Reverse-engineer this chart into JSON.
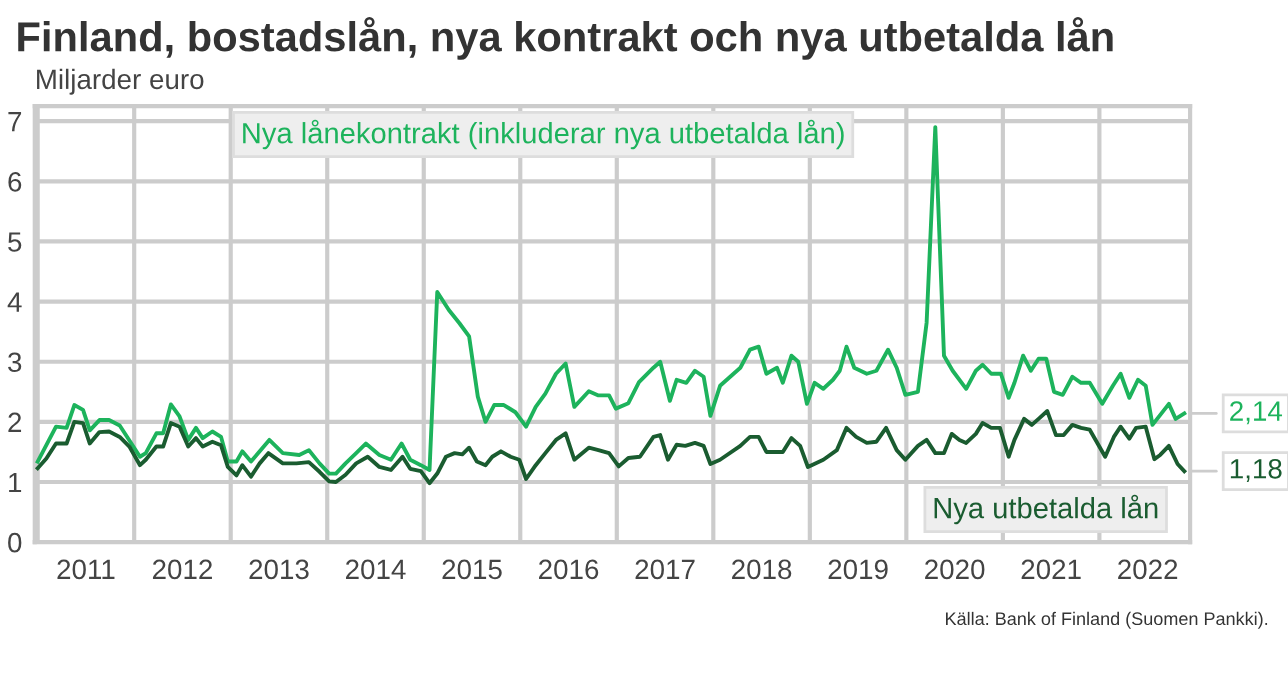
{
  "chart_data": {
    "type": "line",
    "title": "Finland, bostadslån, nya kontrakt och nya utbetalda lån",
    "ylabel": "Miljarder euro",
    "xlim": [
      2010.97,
      2022.94
    ],
    "ylim": [
      0,
      7.25
    ],
    "yticks": [
      0,
      1,
      2,
      3,
      4,
      5,
      6,
      7
    ],
    "xticks": [
      {
        "value": 2011,
        "label": null
      },
      {
        "value": 2011.5,
        "label": "2011"
      },
      {
        "value": 2012,
        "label": null
      },
      {
        "value": 2012.5,
        "label": "2012"
      },
      {
        "value": 2013,
        "label": null
      },
      {
        "value": 2013.5,
        "label": "2013"
      },
      {
        "value": 2014,
        "label": null
      },
      {
        "value": 2014.5,
        "label": "2014"
      },
      {
        "value": 2015,
        "label": null
      },
      {
        "value": 2015.5,
        "label": "2015"
      },
      {
        "value": 2016,
        "label": null
      },
      {
        "value": 2016.5,
        "label": "2016"
      },
      {
        "value": 2017,
        "label": null
      },
      {
        "value": 2017.5,
        "label": "2017"
      },
      {
        "value": 2018,
        "label": null
      },
      {
        "value": 2018.5,
        "label": "2018"
      },
      {
        "value": 2019,
        "label": null
      },
      {
        "value": 2019.5,
        "label": "2019"
      },
      {
        "value": 2020,
        "label": null
      },
      {
        "value": 2020.5,
        "label": "2020"
      },
      {
        "value": 2021,
        "label": null
      },
      {
        "value": 2021.5,
        "label": "2021"
      },
      {
        "value": 2022,
        "label": null
      },
      {
        "value": 2022.5,
        "label": "2022"
      }
    ],
    "grid": true,
    "legend": false,
    "marker": "none",
    "line_style": "solid",
    "series": [
      {
        "name": "Nya lånekontrakt (inkluderar nya utbetalda lån)",
        "color": "#1db35c",
        "x": [
          2011.0,
          2011.19,
          2011.3,
          2011.38,
          2011.47,
          2011.54,
          2011.64,
          2011.74,
          2011.85,
          2012.06,
          2012.12,
          2012.23,
          2012.3,
          2012.38,
          2012.47,
          2012.56,
          2012.64,
          2012.71,
          2012.81,
          2012.9,
          2012.97,
          2013.06,
          2013.12,
          2013.21,
          2013.4,
          2013.54,
          2013.71,
          2013.81,
          2013.92,
          2014.02,
          2014.09,
          2014.19,
          2014.3,
          2014.4,
          2014.54,
          2014.66,
          2014.77,
          2014.86,
          2014.97,
          2015.06,
          2015.14,
          2015.26,
          2015.37,
          2015.47,
          2015.56,
          2015.64,
          2015.73,
          2015.83,
          2015.95,
          2016.06,
          2016.16,
          2016.26,
          2016.37,
          2016.47,
          2016.56,
          2016.71,
          2016.81,
          2016.92,
          2016.99,
          2017.12,
          2017.23,
          2017.38,
          2017.45,
          2017.55,
          2017.62,
          2017.72,
          2017.81,
          2017.9,
          2017.97,
          2018.07,
          2018.28,
          2018.38,
          2018.47,
          2018.55,
          2018.66,
          2018.72,
          2018.81,
          2018.88,
          2018.97,
          2019.05,
          2019.14,
          2019.24,
          2019.31,
          2019.38,
          2019.46,
          2019.59,
          2019.69,
          2019.81,
          2019.9,
          2019.99,
          2020.12,
          2020.21,
          2020.3,
          2020.39,
          2020.48,
          2020.62,
          2020.72,
          2020.79,
          2020.88,
          2020.98,
          2021.06,
          2021.12,
          2021.21,
          2021.29,
          2021.37,
          2021.45,
          2021.53,
          2021.62,
          2021.72,
          2021.81,
          2021.9,
          2022.03,
          2022.14,
          2022.22,
          2022.31,
          2022.4,
          2022.48,
          2022.55,
          2022.72,
          2022.79,
          2022.88
        ],
        "values": [
          1.34,
          1.92,
          1.9,
          2.28,
          2.2,
          1.86,
          2.03,
          2.03,
          1.94,
          1.42,
          1.48,
          1.81,
          1.81,
          2.29,
          2.09,
          1.7,
          1.9,
          1.73,
          1.84,
          1.75,
          1.34,
          1.34,
          1.51,
          1.34,
          1.7,
          1.48,
          1.45,
          1.53,
          1.31,
          1.14,
          1.14,
          1.31,
          1.48,
          1.64,
          1.45,
          1.37,
          1.64,
          1.37,
          1.28,
          1.2,
          4.16,
          3.86,
          3.64,
          3.42,
          2.42,
          2.0,
          2.28,
          2.28,
          2.16,
          1.92,
          2.25,
          2.47,
          2.8,
          2.97,
          2.25,
          2.51,
          2.44,
          2.44,
          2.22,
          2.31,
          2.66,
          2.9,
          3.0,
          2.35,
          2.7,
          2.65,
          2.85,
          2.75,
          2.1,
          2.6,
          2.9,
          3.2,
          3.25,
          2.8,
          2.9,
          2.65,
          3.1,
          3.0,
          2.3,
          2.65,
          2.55,
          2.7,
          2.85,
          3.25,
          2.9,
          2.8,
          2.85,
          3.2,
          2.9,
          2.45,
          2.5,
          3.65,
          6.9,
          3.1,
          2.85,
          2.55,
          2.85,
          2.95,
          2.8,
          2.8,
          2.4,
          2.65,
          3.1,
          2.85,
          3.05,
          3.05,
          2.5,
          2.45,
          2.75,
          2.65,
          2.65,
          2.3,
          2.6,
          2.8,
          2.4,
          2.7,
          2.6,
          1.95,
          2.3,
          2.05,
          2.14
        ]
      },
      {
        "name": "Nya utbetalda lån",
        "color": "#1a5c30",
        "x": [
          2011.0,
          2011.09,
          2011.19,
          2011.3,
          2011.38,
          2011.47,
          2011.54,
          2011.64,
          2011.74,
          2011.85,
          2011.95,
          2012.06,
          2012.12,
          2012.23,
          2012.3,
          2012.38,
          2012.47,
          2012.56,
          2012.64,
          2012.71,
          2012.81,
          2012.9,
          2012.97,
          2013.06,
          2013.12,
          2013.21,
          2013.3,
          2013.39,
          2013.54,
          2013.68,
          2013.81,
          2013.92,
          2014.02,
          2014.09,
          2014.19,
          2014.3,
          2014.42,
          2014.54,
          2014.66,
          2014.78,
          2014.86,
          2014.97,
          2015.06,
          2015.14,
          2015.23,
          2015.32,
          2015.4,
          2015.47,
          2015.55,
          2015.64,
          2015.71,
          2015.8,
          2015.9,
          2015.99,
          2016.06,
          2016.16,
          2016.26,
          2016.37,
          2016.47,
          2016.56,
          2016.71,
          2016.81,
          2016.92,
          2017.02,
          2017.12,
          2017.24,
          2017.38,
          2017.45,
          2017.53,
          2017.62,
          2017.71,
          2017.81,
          2017.9,
          2017.97,
          2018.07,
          2018.28,
          2018.38,
          2018.47,
          2018.55,
          2018.66,
          2018.72,
          2018.81,
          2018.9,
          2018.98,
          2019.14,
          2019.28,
          2019.38,
          2019.48,
          2019.59,
          2019.69,
          2019.79,
          2019.9,
          2019.99,
          2020.12,
          2020.21,
          2020.3,
          2020.39,
          2020.47,
          2020.55,
          2020.62,
          2020.72,
          2020.79,
          2020.88,
          2020.97,
          2021.06,
          2021.12,
          2021.22,
          2021.3,
          2021.37,
          2021.46,
          2021.55,
          2021.63,
          2021.72,
          2021.81,
          2021.9,
          2022.06,
          2022.15,
          2022.22,
          2022.31,
          2022.38,
          2022.48,
          2022.57,
          2022.63,
          2022.72,
          2022.81,
          2022.88
        ],
        "values": [
          1.23,
          1.39,
          1.64,
          1.64,
          2.0,
          1.98,
          1.64,
          1.83,
          1.84,
          1.75,
          1.59,
          1.28,
          1.37,
          1.59,
          1.59,
          1.98,
          1.92,
          1.59,
          1.73,
          1.59,
          1.67,
          1.61,
          1.25,
          1.11,
          1.28,
          1.09,
          1.31,
          1.48,
          1.31,
          1.31,
          1.33,
          1.17,
          1.01,
          1.0,
          1.12,
          1.31,
          1.42,
          1.25,
          1.2,
          1.42,
          1.22,
          1.18,
          0.98,
          1.14,
          1.42,
          1.48,
          1.46,
          1.57,
          1.34,
          1.28,
          1.42,
          1.51,
          1.42,
          1.37,
          1.05,
          1.28,
          1.48,
          1.7,
          1.81,
          1.37,
          1.57,
          1.53,
          1.48,
          1.26,
          1.4,
          1.42,
          1.75,
          1.78,
          1.37,
          1.62,
          1.6,
          1.65,
          1.6,
          1.3,
          1.37,
          1.6,
          1.75,
          1.75,
          1.5,
          1.5,
          1.5,
          1.73,
          1.6,
          1.25,
          1.37,
          1.53,
          1.9,
          1.75,
          1.65,
          1.67,
          1.9,
          1.53,
          1.37,
          1.6,
          1.7,
          1.48,
          1.48,
          1.8,
          1.7,
          1.65,
          1.8,
          1.98,
          1.9,
          1.9,
          1.42,
          1.7,
          2.05,
          1.95,
          2.05,
          2.18,
          1.78,
          1.78,
          1.95,
          1.9,
          1.87,
          1.42,
          1.75,
          1.92,
          1.72,
          1.9,
          1.92,
          1.38,
          1.45,
          1.6,
          1.3,
          1.18
        ]
      }
    ],
    "annotations": [
      {
        "text": "2,14",
        "x": 2022.88,
        "y": 2.14
      },
      {
        "text": "1,18",
        "x": 2022.88,
        "y": 1.18
      },
      "Källa: Bank of Finland (Suomen Pankki)."
    ]
  }
}
